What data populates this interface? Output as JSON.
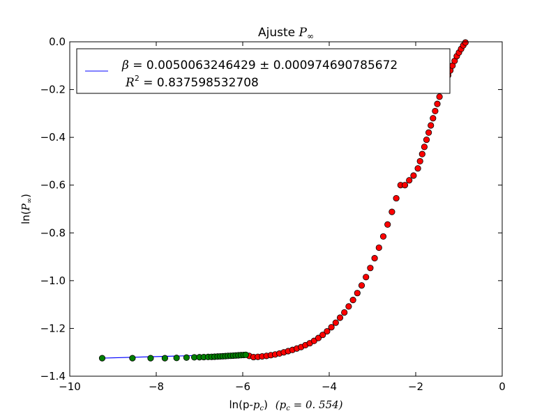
{
  "chart_data": {
    "type": "scatter",
    "title_prefix": "Ajuste ",
    "title_math": "P",
    "title_math_sub": "∞",
    "xlabel_text": "ln(p-",
    "xlabel_pc": "p",
    "xlabel_pc_sub": "c",
    "xlabel_close": ")",
    "xlabel_pc_value": "(p",
    "xlabel_pc_value_sub": "c",
    "xlabel_pc_value_rest": " = 0. 554)",
    "ylabel_text": "ln(",
    "ylabel_math": "P",
    "ylabel_math_sub": "∞",
    "ylabel_close": ")",
    "xlim": [
      -10,
      0
    ],
    "ylim": [
      -1.4,
      0.0
    ],
    "x_ticks": [
      -10,
      -8,
      -6,
      -4,
      -2,
      0
    ],
    "x_tick_labels": [
      "−10",
      "−8",
      "−6",
      "−4",
      "−2",
      "0"
    ],
    "y_ticks": [
      0.0,
      -0.2,
      -0.4,
      -0.6,
      -0.8,
      -1.0,
      -1.2,
      -1.4
    ],
    "y_tick_labels": [
      "0.0",
      "−0.2",
      "−0.4",
      "−0.6",
      "−0.8",
      "−1.0",
      "−1.2",
      "−1.4"
    ],
    "grid": false,
    "legend": {
      "placement": "top-left",
      "beta_symbol": "β",
      "beta_text": " = 0.0050063246429 ± 0.000974690785672",
      "r2_symbol": "R",
      "r2_sup": "2",
      "r2_text": " = 0.837598532708"
    },
    "colors": {
      "fit_line": "#0000ff",
      "fit_points": "#008000",
      "data_points": "#ff0000",
      "marker_edge": "#000000"
    },
    "fit_line": {
      "x": [
        -9.25,
        -5.9
      ],
      "y": [
        -1.3243,
        -1.3075
      ]
    },
    "fit_points": {
      "x": [
        -9.25,
        -8.55,
        -8.13,
        -7.8,
        -7.53,
        -7.3,
        -7.12,
        -7.0,
        -6.9,
        -6.8,
        -6.72,
        -6.65,
        -6.58,
        -6.52,
        -6.46,
        -6.4,
        -6.34,
        -6.28,
        -6.22,
        -6.16,
        -6.1,
        -6.04,
        -5.98,
        -5.93
      ],
      "y": [
        -1.3245,
        -1.3245,
        -1.3245,
        -1.3245,
        -1.3235,
        -1.322,
        -1.321,
        -1.3205,
        -1.32,
        -1.3195,
        -1.319,
        -1.3183,
        -1.3176,
        -1.317,
        -1.3165,
        -1.3158,
        -1.315,
        -1.3145,
        -1.3138,
        -1.3132,
        -1.3125,
        -1.3118,
        -1.3112,
        -1.3105
      ]
    },
    "data_points": {
      "x": [
        -5.85,
        -5.75,
        -5.65,
        -5.55,
        -5.45,
        -5.35,
        -5.25,
        -5.15,
        -5.05,
        -4.95,
        -4.85,
        -4.75,
        -4.65,
        -4.55,
        -4.45,
        -4.35,
        -4.25,
        -4.15,
        -4.05,
        -3.95,
        -3.85,
        -3.75,
        -3.65,
        -3.55,
        -3.45,
        -3.35,
        -3.25,
        -3.15,
        -3.05,
        -2.95,
        -2.85,
        -2.75,
        -2.65,
        -2.55,
        -2.45,
        -2.35,
        -2.25,
        -2.15,
        -2.05,
        -1.95,
        -1.9,
        -1.85,
        -1.8,
        -1.75,
        -1.7,
        -1.65,
        -1.6,
        -1.55,
        -1.5,
        -1.45,
        -1.4,
        -1.35,
        -1.3,
        -1.25,
        -1.2,
        -1.15,
        -1.1,
        -1.05,
        -1.0,
        -0.95,
        -0.9,
        -0.85
      ],
      "y": [
        -1.315,
        -1.32,
        -1.319,
        -1.317,
        -1.315,
        -1.312,
        -1.309,
        -1.305,
        -1.3,
        -1.295,
        -1.29,
        -1.284,
        -1.278,
        -1.27,
        -1.262,
        -1.252,
        -1.24,
        -1.227,
        -1.212,
        -1.195,
        -1.176,
        -1.155,
        -1.133,
        -1.108,
        -1.081,
        -1.052,
        -1.02,
        -0.985,
        -0.947,
        -0.906,
        -0.862,
        -0.815,
        -0.765,
        -0.712,
        -0.655,
        -0.6,
        -0.6,
        -0.58,
        -0.56,
        -0.53,
        -0.5,
        -0.47,
        -0.44,
        -0.41,
        -0.38,
        -0.35,
        -0.32,
        -0.29,
        -0.26,
        -0.23,
        -0.2,
        -0.18,
        -0.16,
        -0.14,
        -0.12,
        -0.1,
        -0.08,
        -0.06,
        -0.045,
        -0.03,
        -0.015,
        -0.003
      ]
    }
  }
}
